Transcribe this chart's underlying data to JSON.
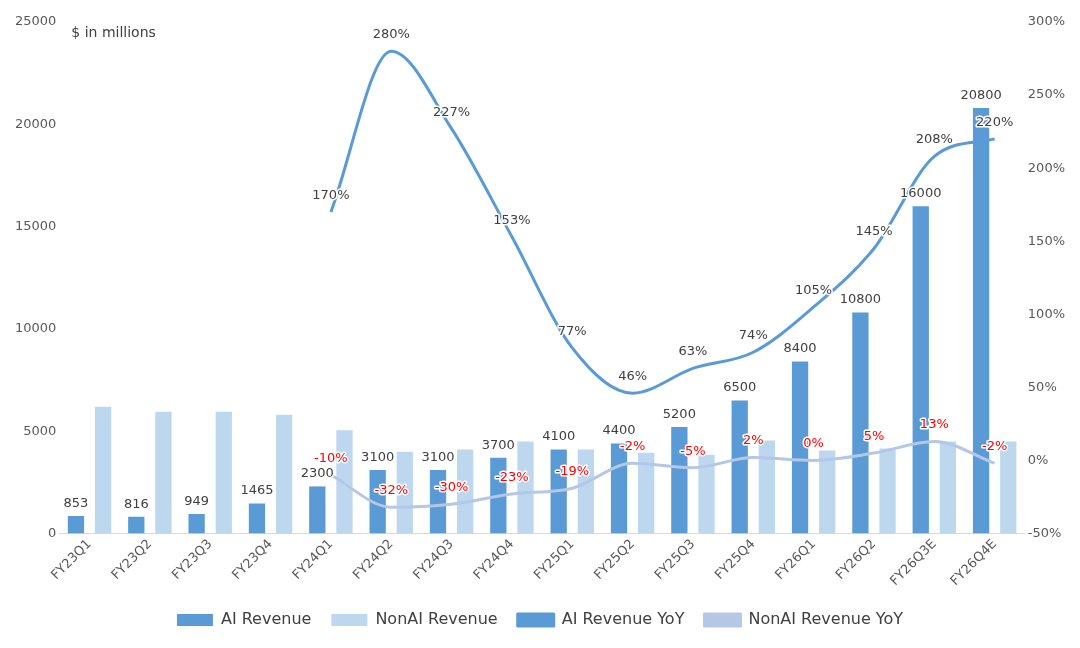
{
  "chart_data": {
    "type": "bar",
    "categories": [
      "FY23Q1",
      "FY23Q2",
      "FY23Q3",
      "FY23Q4",
      "FY24Q1",
      "FY24Q2",
      "FY24Q3",
      "FY24Q4",
      "FY25Q1",
      "FY25Q2",
      "FY25Q3",
      "FY25Q4",
      "FY26Q1",
      "FY26Q2",
      "FY26Q3E",
      "FY26Q4E"
    ],
    "series": [
      {
        "name": "AI Revenue",
        "color": "#5b9bd5",
        "values": [
          853,
          816,
          949,
          1465,
          2300,
          3100,
          3100,
          3700,
          4100,
          4400,
          5200,
          6500,
          8400,
          10800,
          16000,
          20800
        ],
        "value_labels": [
          "853",
          "816",
          "949",
          "1465",
          "2300",
          "3100",
          "3100",
          "3700",
          "4100",
          "4400",
          "5200",
          "6500",
          "8400",
          "10800",
          "16000",
          "20800"
        ]
      },
      {
        "name": "NonAI Revenue",
        "color": "#bdd7ee",
        "values": [
          6200,
          5950,
          5950,
          5800,
          5050,
          4000,
          4100,
          4500,
          4100,
          3950,
          3850,
          4550,
          4050,
          4150,
          4500,
          4500
        ]
      },
      {
        "name": "AI Revenue YoY",
        "type": "line",
        "axis": "y2",
        "color": "#5b9bd5",
        "values": [
          null,
          null,
          null,
          null,
          170,
          280,
          227,
          153,
          77,
          46,
          63,
          74,
          105,
          145,
          208,
          220
        ],
        "value_labels": [
          null,
          null,
          null,
          null,
          "170%",
          "280%",
          "227%",
          "153%",
          "77%",
          "46%",
          "63%",
          "74%",
          "105%",
          "145%",
          "208%",
          "220%"
        ]
      },
      {
        "name": "NonAI Revenue YoY",
        "type": "line",
        "axis": "y2",
        "color": "#b4c7e7",
        "values": [
          null,
          null,
          null,
          null,
          -10,
          -32,
          -30,
          -23,
          -19,
          -2,
          -5,
          2,
          0,
          5,
          13,
          -2
        ],
        "value_labels": [
          null,
          null,
          null,
          null,
          "-10%",
          "-32%",
          "-30%",
          "-23%",
          "-19%",
          "-2%",
          "-5%",
          "2%",
          "0%",
          "5%",
          "13%",
          "-2%"
        ]
      }
    ],
    "ylim": [
      0,
      25000
    ],
    "yticks": [
      0,
      5000,
      10000,
      15000,
      20000,
      25000
    ],
    "y2lim": [
      -50,
      300
    ],
    "y2ticks": [
      {
        "value": -50,
        "label": "-50%"
      },
      {
        "value": 0,
        "label": "0%"
      },
      {
        "value": 50,
        "label": "50%"
      },
      {
        "value": 100,
        "label": "100%"
      },
      {
        "value": 150,
        "label": "150%"
      },
      {
        "value": 200,
        "label": "200%"
      },
      {
        "value": 250,
        "label": "250%"
      },
      {
        "value": 300,
        "label": "300%"
      }
    ],
    "annotations": [
      "$ in millions"
    ],
    "grid": false,
    "legend": "bottom",
    "marker": "none",
    "line_style": "solid"
  }
}
